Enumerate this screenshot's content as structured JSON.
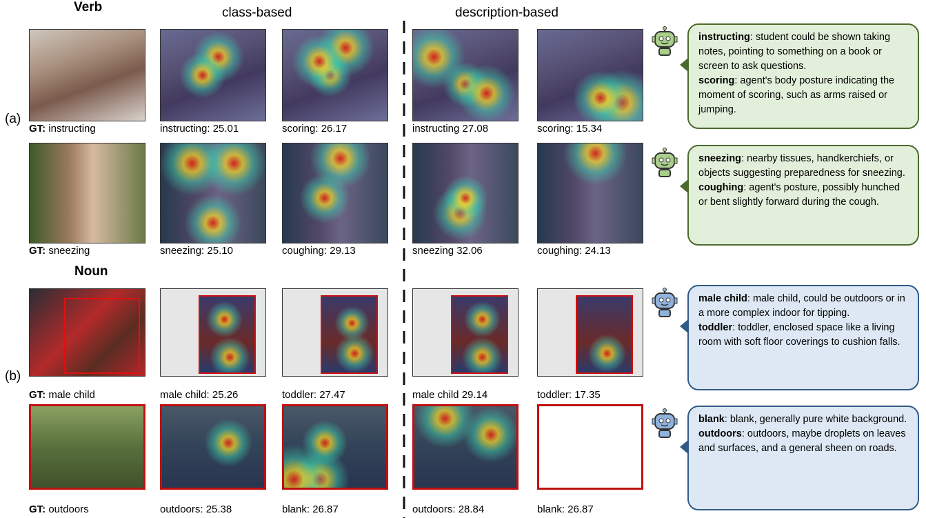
{
  "headers": {
    "verb": "Verb",
    "class_based": "class-based",
    "description_based": "description-based",
    "noun": "Noun"
  },
  "sections": [
    {
      "label": "(a)",
      "rows": [
        {
          "gt_prefix": "GT:",
          "gt": "instructing",
          "captions": [
            "instructing: 25.01",
            "scoring: 26.17",
            "instructing 27.08",
            "scoring: 15.34"
          ],
          "bubble": [
            {
              "term": "instructing",
              "text": ": student could be shown taking notes, pointing to something on a book or screen to ask questions."
            },
            {
              "term": "scoring",
              "text": ": agent's body posture indicating the moment of scoring, such as arms raised or jumping."
            }
          ]
        },
        {
          "gt_prefix": "GT:",
          "gt": "sneezing",
          "captions": [
            "sneezing: 25.10",
            "coughing: 29.13",
            "sneezing 32.06",
            "coughing: 24.13"
          ],
          "bubble": [
            {
              "term": "sneezing",
              "text": ": nearby tissues, handkerchiefs, or objects suggesting preparedness for sneezing."
            },
            {
              "term": "coughing",
              "text": ": agent's posture, possibly hunched or bent slightly forward during the cough."
            }
          ]
        }
      ]
    },
    {
      "label": "(b)",
      "rows": [
        {
          "gt_prefix": "GT:",
          "gt": "male child",
          "captions": [
            "male child: 25.26",
            "toddler: 27.47",
            "male child 29.14",
            "toddler: 17.35"
          ],
          "bubble": [
            {
              "term": "male child",
              "text": ": male child, could be outdoors or in a more complex indoor for tipping."
            },
            {
              "term": "toddler",
              "text": ": toddler, enclosed space like a living room with soft floor coverings to cushion falls."
            }
          ]
        },
        {
          "gt_prefix": "GT:",
          "gt": "outdoors",
          "captions": [
            "outdoors: 25.38",
            "blank: 26.87",
            "outdoors: 28.84",
            "blank: 26.87"
          ],
          "bubble": [
            {
              "term": "blank",
              "text": ": blank, generally pure white background."
            },
            {
              "term": "outdoors",
              "text": ": outdoors, maybe droplets on leaves and surfaces, and a general sheen on roads."
            }
          ]
        }
      ]
    }
  ]
}
